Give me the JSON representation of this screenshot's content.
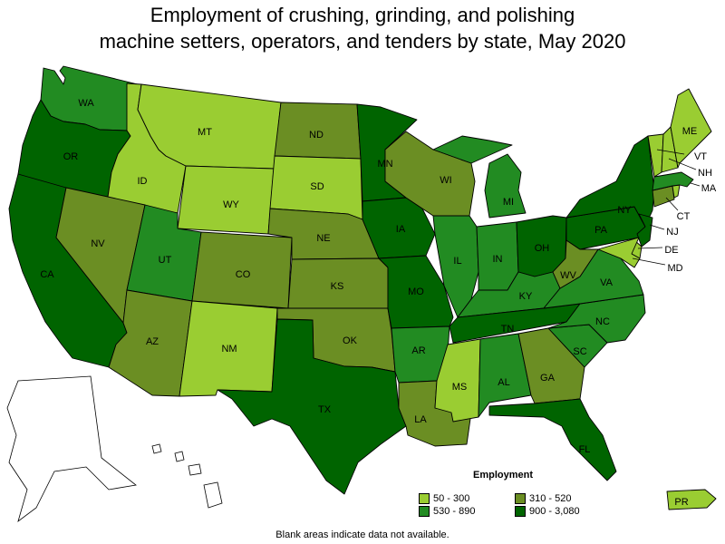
{
  "title_line1": "Employment of crushing, grinding, and polishing",
  "title_line2": "machine setters, operators, and tenders by state, May 2020",
  "legend": {
    "title": "Employment",
    "items": [
      {
        "label": "50 - 300",
        "color": "#9acd32"
      },
      {
        "label": "310 - 520",
        "color": "#6b8e23"
      },
      {
        "label": "530 - 890",
        "color": "#228b22"
      },
      {
        "label": "900 - 3,080",
        "color": "#006400"
      }
    ]
  },
  "footnote": "Blank areas indicate data not available.",
  "states": {
    "WA": {
      "label": "WA",
      "range": "530 - 890"
    },
    "OR": {
      "label": "OR",
      "range": "900 - 3,080"
    },
    "CA": {
      "label": "CA",
      "range": "900 - 3,080"
    },
    "ID": {
      "label": "ID",
      "range": "50 - 300"
    },
    "NV": {
      "label": "NV",
      "range": "310 - 520"
    },
    "MT": {
      "label": "MT",
      "range": "50 - 300"
    },
    "WY": {
      "label": "WY",
      "range": "50 - 300"
    },
    "UT": {
      "label": "UT",
      "range": "530 - 890"
    },
    "AZ": {
      "label": "AZ",
      "range": "310 - 520"
    },
    "CO": {
      "label": "CO",
      "range": "310 - 520"
    },
    "NM": {
      "label": "NM",
      "range": "50 - 300"
    },
    "ND": {
      "label": "ND",
      "range": "310 - 520"
    },
    "SD": {
      "label": "SD",
      "range": "50 - 300"
    },
    "NE": {
      "label": "NE",
      "range": "310 - 520"
    },
    "KS": {
      "label": "KS",
      "range": "310 - 520"
    },
    "OK": {
      "label": "OK",
      "range": "310 - 520"
    },
    "TX": {
      "label": "TX",
      "range": "900 - 3,080"
    },
    "MN": {
      "label": "MN",
      "range": "900 - 3,080"
    },
    "IA": {
      "label": "IA",
      "range": "900 - 3,080"
    },
    "MO": {
      "label": "MO",
      "range": "900 - 3,080"
    },
    "AR": {
      "label": "AR",
      "range": "530 - 890"
    },
    "LA": {
      "label": "LA",
      "range": "310 - 520"
    },
    "WI": {
      "label": "WI",
      "range": "310 - 520"
    },
    "IL": {
      "label": "IL",
      "range": "530 - 890"
    },
    "MI": {
      "label": "MI",
      "range": "530 - 890"
    },
    "IN": {
      "label": "IN",
      "range": "530 - 890"
    },
    "OH": {
      "label": "OH",
      "range": "900 - 3,080"
    },
    "KY": {
      "label": "KY",
      "range": "530 - 890"
    },
    "TN": {
      "label": "TN",
      "range": "900 - 3,080"
    },
    "MS": {
      "label": "MS",
      "range": "50 - 300"
    },
    "AL": {
      "label": "AL",
      "range": "530 - 890"
    },
    "GA": {
      "label": "GA",
      "range": "310 - 520"
    },
    "FL": {
      "label": "FL",
      "range": "900 - 3,080"
    },
    "SC": {
      "label": "SC",
      "range": "530 - 890"
    },
    "NC": {
      "label": "NC",
      "range": "530 - 890"
    },
    "VA": {
      "label": "VA",
      "range": "530 - 890"
    },
    "WV": {
      "label": "WV",
      "range": "310 - 520"
    },
    "PA": {
      "label": "PA",
      "range": "900 - 3,080"
    },
    "NY": {
      "label": "NY",
      "range": "900 - 3,080"
    },
    "NJ": {
      "label": "NJ",
      "range": "900 - 3,080"
    },
    "DE": {
      "label": "DE",
      "range": "50 - 300"
    },
    "MD": {
      "label": "MD",
      "range": "50 - 300"
    },
    "CT": {
      "label": "CT",
      "range": "310 - 520"
    },
    "MA": {
      "label": "MA",
      "range": "530 - 890"
    },
    "VT": {
      "label": "VT",
      "range": "50 - 300"
    },
    "NH": {
      "label": "NH",
      "range": "50 - 300"
    },
    "ME": {
      "label": "ME",
      "range": "50 - 300"
    },
    "RI": {
      "label": "RI",
      "range": "50 - 300"
    },
    "PR": {
      "label": "PR",
      "range": "50 - 300"
    },
    "AK": {
      "label": "",
      "range": ""
    },
    "HI": {
      "label": "",
      "range": ""
    }
  }
}
